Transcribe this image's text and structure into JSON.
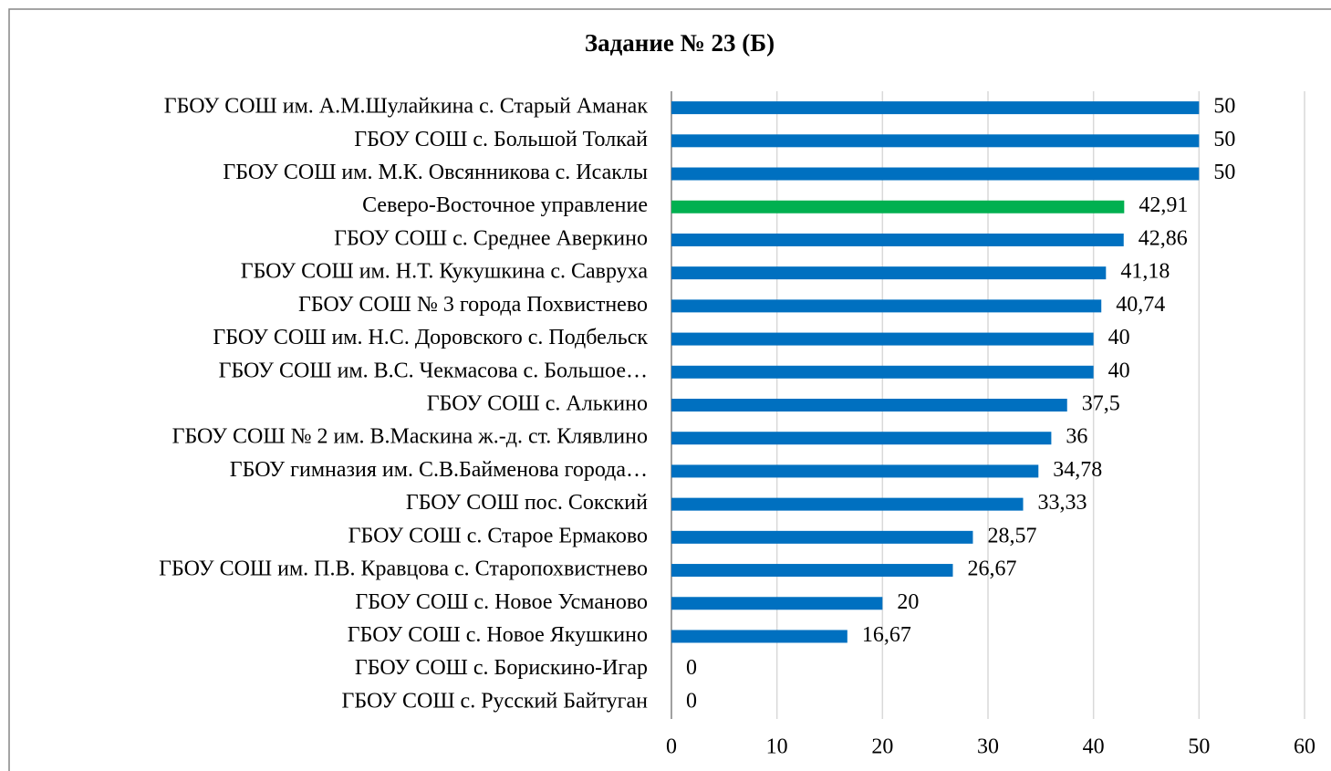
{
  "chart_data": {
    "type": "barh",
    "title": "Задание № 23 (Б)",
    "categories": [
      "ГБОУ СОШ им. А.М.Шулайкина  с. Старый Аманак",
      "ГБОУ СОШ с. Большой Толкай",
      "ГБОУ СОШ им. М.К. Овсянникова с. Исаклы",
      "Северо-Восточное управление",
      "ГБОУ СОШ с. Среднее Аверкино",
      "ГБОУ СОШ им. Н.Т. Кукушкина  с. Савруха",
      "ГБОУ СОШ № 3 города Похвистнево",
      "ГБОУ СОШ им. Н.С. Доровского с. Подбельск",
      "ГБОУ СОШ им. В.С. Чекмасова с. Большое…",
      "ГБОУ СОШ с. Алькино",
      "ГБОУ СОШ № 2 им. В.Маскина ж.-д. ст. Клявлино",
      "ГБОУ гимназия им. С.В.Байменова города…",
      "ГБОУ СОШ пос. Сокский",
      "ГБОУ СОШ с. Старое Ермаково",
      "ГБОУ СОШ им. П.В. Кравцова с. Старопохвистнево",
      "ГБОУ СОШ с. Новое Усманово",
      "ГБОУ СОШ с. Новое Якушкино",
      "ГБОУ СОШ с. Борискино-Игар",
      "ГБОУ СОШ с. Русский Байтуган"
    ],
    "values": [
      50,
      50,
      50,
      42.91,
      42.86,
      41.18,
      40.74,
      40,
      40,
      37.5,
      36,
      34.78,
      33.33,
      28.57,
      26.67,
      20,
      16.67,
      0,
      0
    ],
    "value_labels": [
      "50",
      "50",
      "50",
      "42,91",
      "42,86",
      "41,18",
      "40,74",
      "40",
      "40",
      "37,5",
      "36",
      "34,78",
      "33,33",
      "28,57",
      "26,67",
      "20",
      "16,67",
      "0",
      "0"
    ],
    "colors": [
      "#0070c0",
      "#0070c0",
      "#0070c0",
      "#00b050",
      "#0070c0",
      "#0070c0",
      "#0070c0",
      "#0070c0",
      "#0070c0",
      "#0070c0",
      "#0070c0",
      "#0070c0",
      "#0070c0",
      "#0070c0",
      "#0070c0",
      "#0070c0",
      "#0070c0",
      "#0070c0",
      "#0070c0"
    ],
    "xlim": [
      0,
      60
    ],
    "xticks": [
      0,
      10,
      20,
      30,
      40,
      50,
      60
    ],
    "grid": true
  }
}
